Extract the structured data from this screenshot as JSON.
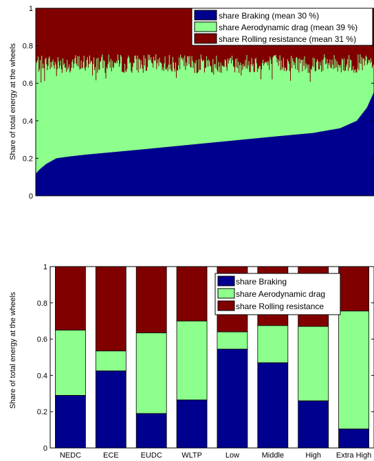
{
  "colors": {
    "braking": "#00008f",
    "aero": "#8cff8c",
    "rolling": "#800000"
  },
  "chart_data": [
    {
      "type": "area",
      "stacked": true,
      "ylabel": "Share of total energy at the wheels",
      "ylim": [
        0,
        1
      ],
      "yticks": [
        "0",
        "0.2",
        "0.4",
        "0.6",
        "0.8",
        "1"
      ],
      "legend_position": "top-right",
      "n_points": 480,
      "series": [
        {
          "name": "share Braking (mean 30 %)",
          "key": "braking",
          "profile_x": [
            0,
            0.01,
            0.03,
            0.06,
            0.1,
            0.15,
            0.3,
            0.5,
            0.7,
            0.82,
            0.9,
            0.95,
            0.98,
            1.0
          ],
          "profile_y": [
            0.12,
            0.14,
            0.17,
            0.2,
            0.21,
            0.22,
            0.245,
            0.28,
            0.315,
            0.335,
            0.36,
            0.4,
            0.47,
            0.55
          ]
        },
        {
          "name": "share Aerodynamic drag (mean 39 %)",
          "key": "aero",
          "top_base": 0.705,
          "top_jitter": 0.05
        },
        {
          "name": "share Rolling resistance (mean 31 %)",
          "key": "rolling"
        }
      ]
    },
    {
      "type": "bar",
      "stacked": true,
      "ylabel": "Share of total energy at the wheels",
      "ylim": [
        0,
        1
      ],
      "yticks": [
        "0",
        "0.2",
        "0.4",
        "0.6",
        "0.8",
        "1"
      ],
      "legend_position": "top-right",
      "categories": [
        "NEDC",
        "ECE",
        "EUDC",
        "WLTP",
        "Low",
        "Middle",
        "High",
        "Extra High"
      ],
      "series": [
        {
          "name": "share Braking",
          "key": "braking",
          "values": [
            0.29,
            0.425,
            0.19,
            0.265,
            0.545,
            0.47,
            0.26,
            0.105
          ]
        },
        {
          "name": "share Aerodynamic drag",
          "key": "aero",
          "values": [
            0.36,
            0.11,
            0.445,
            0.435,
            0.095,
            0.205,
            0.41,
            0.65
          ]
        },
        {
          "name": "share Rolling resistance",
          "key": "rolling",
          "values": [
            0.35,
            0.465,
            0.365,
            0.3,
            0.36,
            0.325,
            0.33,
            0.245
          ]
        }
      ]
    }
  ]
}
